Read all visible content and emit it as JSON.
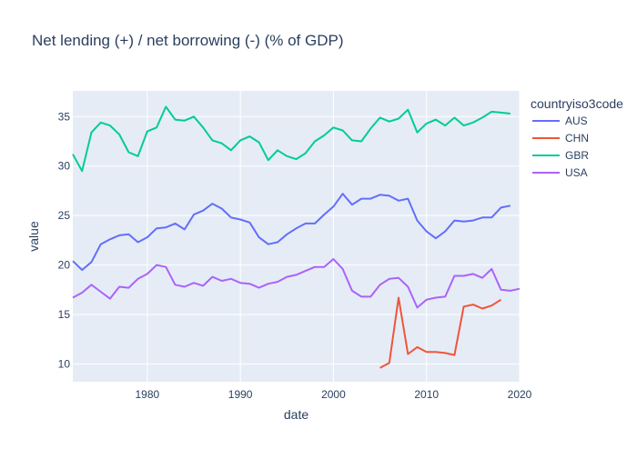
{
  "chart_data": {
    "type": "line",
    "title": "Net lending (+) / net borrowing (-) (% of GDP)",
    "xlabel": "date",
    "ylabel": "value",
    "xlim": [
      1972,
      2020
    ],
    "ylim": [
      8.2,
      37.6
    ],
    "x_ticks": [
      1980,
      1990,
      2000,
      2010,
      2020
    ],
    "y_ticks": [
      10,
      15,
      20,
      25,
      30,
      35
    ],
    "grid": true,
    "legend_title": "countryiso3code",
    "legend_position": "right",
    "series": [
      {
        "name": "AUS",
        "color": "#636efa",
        "x": [
          1972,
          1973,
          1974,
          1975,
          1976,
          1977,
          1978,
          1979,
          1980,
          1981,
          1982,
          1983,
          1984,
          1985,
          1986,
          1987,
          1988,
          1989,
          1990,
          1991,
          1992,
          1993,
          1994,
          1995,
          1996,
          1997,
          1998,
          1999,
          2000,
          2001,
          2002,
          2003,
          2004,
          2005,
          2006,
          2007,
          2008,
          2009,
          2010,
          2011,
          2012,
          2013,
          2014,
          2015,
          2016,
          2017,
          2018,
          2019
        ],
        "y": [
          20.4,
          19.5,
          20.3,
          22.1,
          22.6,
          23.0,
          23.1,
          22.3,
          22.8,
          23.7,
          23.8,
          24.2,
          23.6,
          25.1,
          25.5,
          26.2,
          25.7,
          24.8,
          24.6,
          24.3,
          22.8,
          22.1,
          22.3,
          23.1,
          23.7,
          24.2,
          24.2,
          25.1,
          25.9,
          27.2,
          26.1,
          26.7,
          26.7,
          27.1,
          27.0,
          26.5,
          26.7,
          24.5,
          23.4,
          22.7,
          23.4,
          24.5,
          24.4,
          24.5,
          24.8,
          24.8,
          25.8,
          26.0
        ]
      },
      {
        "name": "CHN",
        "color": "#ef553b",
        "x": [
          2005,
          2006,
          2007,
          2008,
          2009,
          2010,
          2011,
          2012,
          2013,
          2014,
          2015,
          2016,
          2017,
          2018
        ],
        "y": [
          9.6,
          10.1,
          16.7,
          11.0,
          11.7,
          11.2,
          11.2,
          11.1,
          10.9,
          15.8,
          16.0,
          15.6,
          15.9,
          16.5
        ]
      },
      {
        "name": "GBR",
        "color": "#00cc96",
        "x": [
          1972,
          1973,
          1974,
          1975,
          1976,
          1977,
          1978,
          1979,
          1980,
          1981,
          1982,
          1983,
          1984,
          1985,
          1986,
          1987,
          1988,
          1989,
          1990,
          1991,
          1992,
          1993,
          1994,
          1995,
          1996,
          1997,
          1998,
          1999,
          2000,
          2001,
          2002,
          2003,
          2004,
          2005,
          2006,
          2007,
          2008,
          2009,
          2010,
          2011,
          2012,
          2013,
          2014,
          2015,
          2016,
          2017,
          2018,
          2019
        ],
        "y": [
          31.2,
          29.5,
          33.4,
          34.4,
          34.1,
          33.2,
          31.4,
          31.0,
          33.5,
          33.9,
          36.0,
          34.7,
          34.6,
          35.0,
          33.9,
          32.6,
          32.3,
          31.6,
          32.6,
          33.0,
          32.4,
          30.6,
          31.6,
          31.0,
          30.7,
          31.3,
          32.5,
          33.1,
          33.9,
          33.6,
          32.6,
          32.5,
          33.8,
          34.9,
          34.5,
          34.8,
          35.7,
          33.4,
          34.3,
          34.7,
          34.1,
          34.9,
          34.1,
          34.4,
          34.9,
          35.5,
          35.4,
          35.3
        ]
      },
      {
        "name": "USA",
        "color": "#ab63fa",
        "x": [
          1972,
          1973,
          1974,
          1975,
          1976,
          1977,
          1978,
          1979,
          1980,
          1981,
          1982,
          1983,
          1984,
          1985,
          1986,
          1987,
          1988,
          1989,
          1990,
          1991,
          1992,
          1993,
          1994,
          1995,
          1996,
          1997,
          1998,
          1999,
          2000,
          2001,
          2002,
          2003,
          2004,
          2005,
          2006,
          2007,
          2008,
          2009,
          2010,
          2011,
          2012,
          2013,
          2014,
          2015,
          2016,
          2017,
          2018,
          2019,
          2020
        ],
        "y": [
          16.7,
          17.2,
          18.0,
          17.3,
          16.6,
          17.8,
          17.7,
          18.6,
          19.1,
          20.0,
          19.8,
          18.0,
          17.8,
          18.2,
          17.9,
          18.8,
          18.4,
          18.6,
          18.2,
          18.1,
          17.7,
          18.1,
          18.3,
          18.8,
          19.0,
          19.4,
          19.8,
          19.8,
          20.6,
          19.6,
          17.4,
          16.8,
          16.8,
          18.0,
          18.6,
          18.7,
          17.8,
          15.7,
          16.5,
          16.7,
          16.8,
          18.9,
          18.9,
          19.1,
          18.7,
          19.6,
          17.5,
          17.4,
          17.6
        ]
      }
    ]
  }
}
